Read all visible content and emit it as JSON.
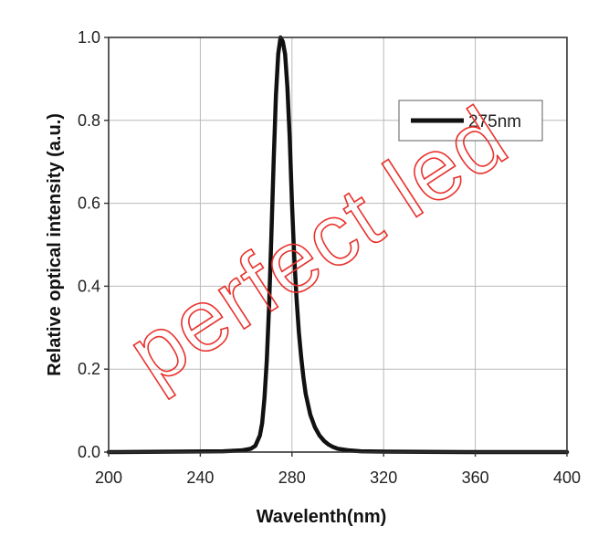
{
  "chart_data": {
    "type": "line",
    "xlabel": "Wavelenth(nm)",
    "ylabel": "Relative optical intensity (a.u.)",
    "xlim": [
      200,
      400
    ],
    "ylim": [
      0,
      1.0
    ],
    "xticks": [
      "200",
      "240",
      "280",
      "320",
      "360",
      "400"
    ],
    "yticks": [
      "0.0",
      "0.2",
      "0.4",
      "0.6",
      "0.8",
      "1.0"
    ],
    "grid": true,
    "legend_position": "top-right",
    "series": [
      {
        "name": "275nm",
        "color": "#111111",
        "x": [
          200,
          230,
          250,
          258,
          262,
          264,
          266,
          267,
          268,
          269,
          270,
          271,
          272,
          273,
          274,
          275,
          276,
          277,
          278,
          279,
          280,
          281,
          282,
          283,
          284,
          285,
          286,
          288,
          290,
          292,
          294,
          296,
          298,
          300,
          305,
          310,
          320,
          360,
          400
        ],
        "y": [
          0.0,
          0.001,
          0.002,
          0.004,
          0.008,
          0.015,
          0.04,
          0.07,
          0.13,
          0.22,
          0.35,
          0.52,
          0.7,
          0.86,
          0.96,
          1.0,
          0.99,
          0.96,
          0.88,
          0.76,
          0.6,
          0.47,
          0.37,
          0.29,
          0.23,
          0.18,
          0.14,
          0.09,
          0.06,
          0.04,
          0.027,
          0.018,
          0.012,
          0.008,
          0.004,
          0.002,
          0.001,
          0.0,
          0.0
        ]
      }
    ]
  },
  "watermark": {
    "text": "perfect led",
    "color": "#e8322d"
  }
}
